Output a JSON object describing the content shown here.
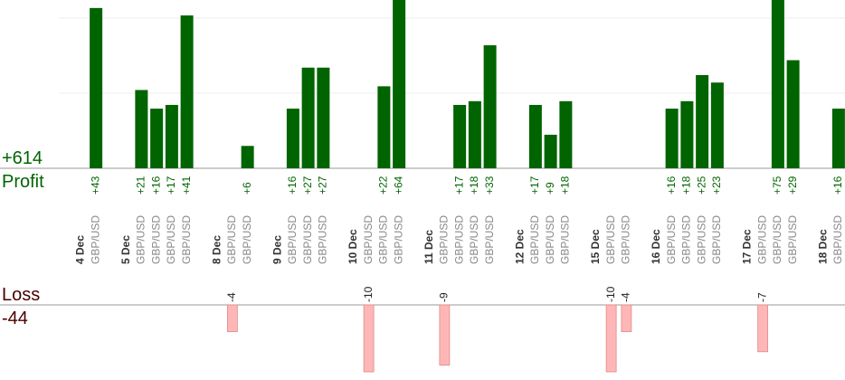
{
  "summary": {
    "profit_total": "+614",
    "profit_label": "Profit",
    "loss_label": "Loss",
    "loss_total": "-44"
  },
  "colors": {
    "profit_bar": "#006400",
    "loss_bar": "#ffb6b6",
    "loss_bar_stroke": "#e08a8a",
    "profit_text": "#006400",
    "loss_text": "#4a0000",
    "date_text": "#333333",
    "pair_text": "#888888",
    "grid": "#eeeeee",
    "axis": "#999999"
  },
  "chart_data": {
    "type": "bar",
    "profit_axis": {
      "range": [
        0,
        45
      ]
    },
    "loss_axis": {
      "range": [
        -10,
        0
      ]
    },
    "groups": [
      {
        "date": "4 Dec",
        "trades": [
          {
            "pair": "GBP/USD",
            "profit": 43
          }
        ]
      },
      {
        "date": "5 Dec",
        "trades": [
          {
            "pair": "GBP/USD",
            "profit": 21
          },
          {
            "pair": "GBP/USD",
            "profit": 16
          },
          {
            "pair": "GBP/USD",
            "profit": 17
          },
          {
            "pair": "GBP/USD",
            "profit": 41
          }
        ]
      },
      {
        "date": "8 Dec",
        "trades": [
          {
            "pair": "GBP/USD",
            "loss": -4
          },
          {
            "pair": "GBP/USD",
            "profit": 6
          }
        ]
      },
      {
        "date": "9 Dec",
        "trades": [
          {
            "pair": "GBP/USD",
            "profit": 16
          },
          {
            "pair": "GBP/USD",
            "profit": 27
          },
          {
            "pair": "GBP/USD",
            "profit": 27
          }
        ]
      },
      {
        "date": "10 Dec",
        "trades": [
          {
            "pair": "GBP/USD",
            "loss": -10
          },
          {
            "pair": "GBP/USD",
            "profit": 22
          },
          {
            "pair": "GBP/USD",
            "profit": 64
          }
        ]
      },
      {
        "date": "11 Dec",
        "trades": [
          {
            "pair": "GBP/USD",
            "loss": -9
          },
          {
            "pair": "GBP/USD",
            "profit": 17
          },
          {
            "pair": "GBP/USD",
            "profit": 18
          },
          {
            "pair": "GBP/USD",
            "profit": 33
          }
        ]
      },
      {
        "date": "12 Dec",
        "trades": [
          {
            "pair": "GBP/USD",
            "profit": 17
          },
          {
            "pair": "GBP/USD",
            "profit": 9
          },
          {
            "pair": "GBP/USD",
            "profit": 18
          }
        ]
      },
      {
        "date": "15 Dec",
        "trades": [
          {
            "pair": "GBP/USD",
            "loss": -10
          },
          {
            "pair": "GBP/USD",
            "loss": -4
          }
        ]
      },
      {
        "date": "16 Dec",
        "trades": [
          {
            "pair": "GBP/USD",
            "profit": 16
          },
          {
            "pair": "GBP/USD",
            "profit": 18
          },
          {
            "pair": "GBP/USD",
            "profit": 25
          },
          {
            "pair": "GBP/USD",
            "profit": 23
          }
        ]
      },
      {
        "date": "17 Dec",
        "trades": [
          {
            "pair": "GBP/USD",
            "loss": -7
          },
          {
            "pair": "GBP/USD",
            "profit": 75
          },
          {
            "pair": "GBP/USD",
            "profit": 29
          }
        ]
      },
      {
        "date": "18 Dec",
        "trades": [
          {
            "pair": "GBP/USD",
            "profit": 16
          }
        ]
      }
    ]
  }
}
